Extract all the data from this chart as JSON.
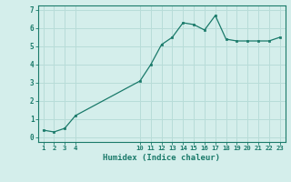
{
  "x": [
    1,
    2,
    3,
    4,
    10,
    11,
    12,
    13,
    14,
    15,
    16,
    17,
    18,
    19,
    20,
    21,
    22,
    23
  ],
  "y": [
    0.4,
    0.3,
    0.5,
    1.2,
    3.1,
    4.0,
    5.1,
    5.5,
    6.3,
    6.2,
    5.9,
    6.7,
    5.4,
    5.3,
    5.3,
    5.3,
    5.3,
    5.5
  ],
  "line_color": "#1a7a6a",
  "marker_color": "#1a7a6a",
  "bg_color": "#d4eeeb",
  "grid_color": "#b8dcd8",
  "xlabel": "Humidex (Indice chaleur)",
  "xticks": [
    1,
    2,
    3,
    4,
    10,
    11,
    12,
    13,
    14,
    15,
    16,
    17,
    18,
    19,
    20,
    21,
    22,
    23
  ],
  "yticks": [
    0,
    1,
    2,
    3,
    4,
    5,
    6,
    7
  ],
  "ylim": [
    -0.25,
    7.25
  ],
  "xlim": [
    0.5,
    23.5
  ]
}
